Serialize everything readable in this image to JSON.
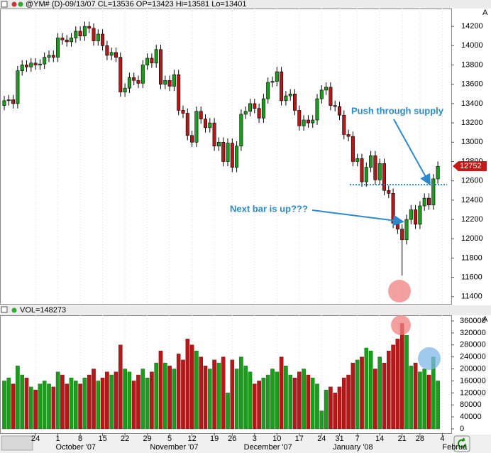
{
  "chart_data": [
    {
      "type": "candlestick",
      "title": "@YM# (D)-09/13/07 CL=13536 OP=13423 Hi=13581 Lo=13401",
      "open": [
        13380,
        13430,
        13440,
        13400,
        13740,
        13800,
        13780,
        13820,
        13800,
        13810,
        13880,
        13900,
        13880,
        14080,
        14060,
        14040,
        14080,
        14150,
        14100,
        14200,
        14180,
        14050,
        14120,
        14000,
        13900,
        13930,
        13880,
        13520,
        13560,
        13670,
        13640,
        13610,
        13800,
        13870,
        13820,
        13960,
        13600,
        13640,
        13580,
        13700,
        13330,
        13300,
        13070,
        13000,
        13320,
        13240,
        13150,
        13200,
        12960,
        13000,
        12800,
        12990,
        12740,
        12960,
        13290,
        13320,
        13400,
        13350,
        13250,
        13450,
        13620,
        13630,
        13730,
        13430,
        13480,
        13500,
        13330,
        13170,
        13230,
        13200,
        13230,
        13450,
        13540,
        13570,
        13380,
        13370,
        13280,
        13080,
        13060,
        12800,
        12830,
        12590,
        12740,
        12860,
        12610,
        12780,
        12500,
        12470,
        12160,
        12100,
        11990,
        12200,
        12300,
        12150,
        12340,
        12420,
        12350,
        12620
      ],
      "high": [
        13480,
        13490,
        13490,
        13790,
        13850,
        13850,
        13870,
        13870,
        13860,
        13930,
        13950,
        13950,
        14130,
        14130,
        14110,
        14130,
        14200,
        14200,
        14250,
        14250,
        14230,
        14170,
        14170,
        14050,
        13980,
        13980,
        13930,
        13610,
        13720,
        13720,
        13690,
        13850,
        13920,
        13920,
        14010,
        14010,
        13690,
        13690,
        13750,
        13750,
        13380,
        13350,
        13120,
        13370,
        13370,
        13290,
        13250,
        13250,
        13050,
        13050,
        13040,
        13040,
        13010,
        13340,
        13370,
        13450,
        13450,
        13400,
        13500,
        13670,
        13680,
        13780,
        13780,
        13530,
        13550,
        13550,
        13380,
        13280,
        13280,
        13280,
        13500,
        13590,
        13620,
        13620,
        13430,
        13420,
        13330,
        13130,
        13110,
        12880,
        12880,
        12790,
        12910,
        12910,
        12830,
        12830,
        12550,
        12520,
        12210,
        12150,
        12250,
        12350,
        12350,
        12390,
        12470,
        12470,
        12670,
        12800
      ],
      "low": [
        13330,
        13380,
        13350,
        13350,
        13690,
        13730,
        13730,
        13750,
        13750,
        13760,
        13830,
        13830,
        13830,
        14010,
        13990,
        13990,
        14030,
        14050,
        14050,
        14130,
        14000,
        14000,
        13950,
        13850,
        13850,
        13830,
        13470,
        13470,
        13510,
        13590,
        13560,
        13560,
        13750,
        13770,
        13770,
        13550,
        13550,
        13530,
        13530,
        13280,
        13250,
        13020,
        12950,
        12950,
        13190,
        13100,
        13100,
        12910,
        12910,
        12750,
        12750,
        12690,
        12690,
        12910,
        13240,
        13270,
        13300,
        13200,
        13200,
        13400,
        13570,
        13580,
        13380,
        13380,
        13430,
        13280,
        13120,
        13120,
        13150,
        13150,
        13180,
        13400,
        13490,
        13330,
        13320,
        13230,
        13030,
        13010,
        12750,
        12750,
        12540,
        12540,
        12690,
        12560,
        12560,
        12450,
        12420,
        12110,
        12050,
        11620,
        11940,
        12150,
        12100,
        12100,
        12290,
        12300,
        12300,
        12570
      ],
      "close": [
        13430,
        13440,
        13400,
        13740,
        13800,
        13780,
        13820,
        13800,
        13810,
        13880,
        13900,
        13880,
        14080,
        14060,
        14040,
        14080,
        14150,
        14100,
        14200,
        14180,
        14050,
        14120,
        14000,
        13900,
        13930,
        13880,
        13520,
        13560,
        13670,
        13640,
        13610,
        13800,
        13870,
        13820,
        13960,
        13600,
        13640,
        13580,
        13700,
        13330,
        13300,
        13070,
        13000,
        13320,
        13240,
        13150,
        13200,
        12960,
        13000,
        12800,
        12990,
        12740,
        12960,
        13290,
        13320,
        13400,
        13350,
        13250,
        13450,
        13620,
        13630,
        13730,
        13430,
        13480,
        13500,
        13330,
        13170,
        13230,
        13200,
        13230,
        13450,
        13540,
        13570,
        13380,
        13370,
        13280,
        13080,
        13060,
        12800,
        12830,
        12590,
        12740,
        12860,
        12610,
        12780,
        12500,
        12470,
        12160,
        12100,
        11990,
        12200,
        12300,
        12150,
        12340,
        12420,
        12350,
        12620,
        12750
      ],
      "up_color": "#1c9c1c",
      "down_color": "#b41818",
      "ylim": [
        11325,
        14385
      ],
      "yticks": [
        11400,
        11600,
        11800,
        12000,
        12200,
        12400,
        12600,
        12800,
        13000,
        13200,
        13400,
        13600,
        13800,
        14000,
        14200
      ],
      "last_price": 12752,
      "supply_level": 12560,
      "annotations": [
        "Push through supply",
        "Next bar is up???"
      ]
    },
    {
      "type": "bar",
      "title": "VOL=148273",
      "values": [
        160000,
        170000,
        150000,
        210000,
        180000,
        170000,
        140000,
        130000,
        150000,
        160000,
        150000,
        140000,
        190000,
        180000,
        150000,
        170000,
        160000,
        150000,
        170000,
        180000,
        200000,
        160000,
        170000,
        190000,
        180000,
        190000,
        280000,
        200000,
        190000,
        160000,
        180000,
        200000,
        170000,
        190000,
        220000,
        260000,
        220000,
        210000,
        200000,
        250000,
        230000,
        300000,
        280000,
        260000,
        240000,
        210000,
        200000,
        230000,
        220000,
        240000,
        120000,
        230000,
        200000,
        240000,
        210000,
        190000,
        150000,
        160000,
        170000,
        180000,
        200000,
        190000,
        240000,
        210000,
        180000,
        170000,
        190000,
        200000,
        180000,
        170000,
        150000,
        60000,
        130000,
        140000,
        120000,
        140000,
        170000,
        180000,
        220000,
        230000,
        240000,
        270000,
        260000,
        200000,
        240000,
        220000,
        260000,
        280000,
        300000,
        352000,
        312000,
        210000,
        220000,
        190000,
        200000,
        180000,
        240000,
        160000
      ],
      "ylim": [
        -14200,
        379000
      ],
      "yticks": [
        0,
        40000,
        80000,
        120000,
        160000,
        200000,
        240000,
        280000,
        320000,
        360000
      ]
    }
  ],
  "x_axis": {
    "ticks": [
      {
        "value": 7,
        "label": "24"
      },
      {
        "value": 12,
        "label": "1"
      },
      {
        "value": 17,
        "label": "8"
      },
      {
        "value": 22,
        "label": "15"
      },
      {
        "value": 27,
        "label": "22"
      },
      {
        "value": 32,
        "label": "29"
      },
      {
        "value": 37,
        "label": "5"
      },
      {
        "value": 42,
        "label": "12"
      },
      {
        "value": 47,
        "label": "19"
      },
      {
        "value": 51,
        "label": "26"
      },
      {
        "value": 56,
        "label": "3"
      },
      {
        "value": 61,
        "label": "10"
      },
      {
        "value": 66,
        "label": "17"
      },
      {
        "value": 71,
        "label": "24"
      },
      {
        "value": 75,
        "label": "31"
      },
      {
        "value": 79,
        "label": "7"
      },
      {
        "value": 84,
        "label": "14"
      },
      {
        "value": 89,
        "label": "21"
      },
      {
        "value": 93,
        "label": "28"
      },
      {
        "value": 98,
        "label": "4"
      }
    ],
    "months": [
      {
        "value": 16,
        "label": "October '07"
      },
      {
        "value": 38,
        "label": "November '07"
      },
      {
        "value": 59,
        "label": "December '07"
      },
      {
        "value": 78,
        "label": "January '08"
      },
      {
        "value": 98,
        "label": "Februa"
      }
    ],
    "corner": "A"
  }
}
